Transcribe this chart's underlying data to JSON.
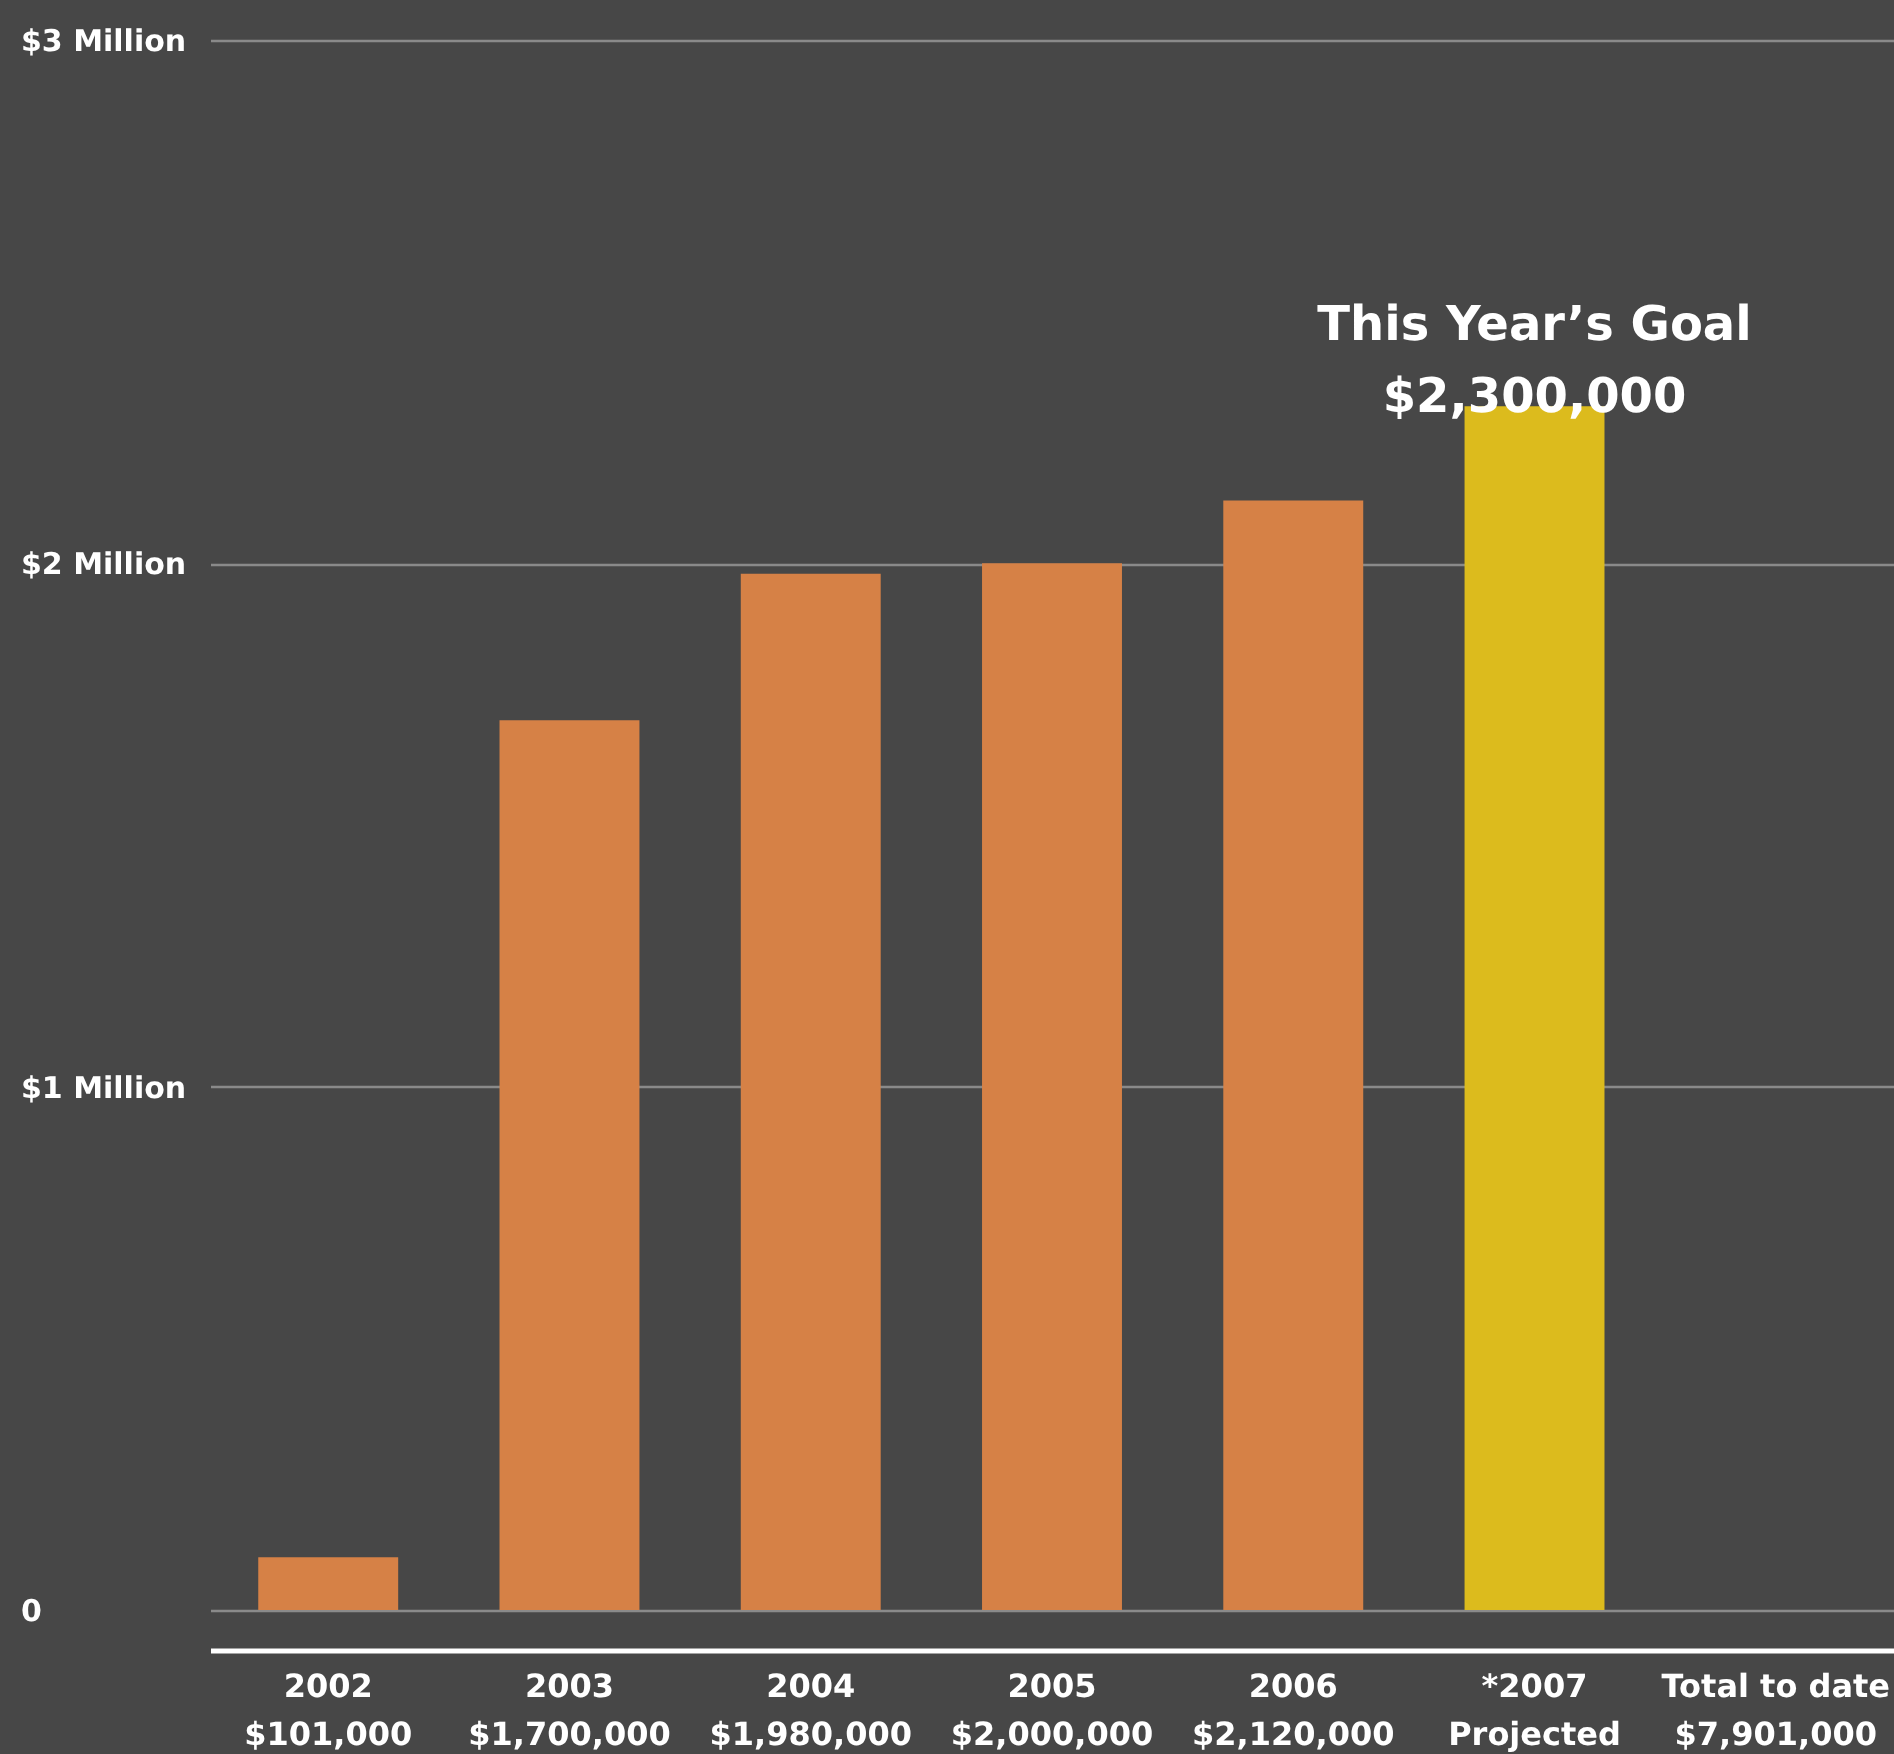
{
  "chart_data": {
    "type": "bar",
    "categories": [
      "2002\n$101,000",
      "2003\n$1,700,000",
      "2004\n$1,980,000",
      "2005\n$2,000,000",
      "2006\n$2,120,000",
      "*2007\nProjected",
      "Total to date\n$7,901,000"
    ],
    "values": [
      0.101,
      1.7,
      1.98,
      2.0,
      2.12,
      2.3,
      null
    ],
    "colors": [
      "#d68146",
      "#d68146",
      "#d68146",
      "#d68146",
      "#d68146",
      "#dcbb1d",
      "#d68146"
    ],
    "ylim": [
      0,
      3
    ],
    "yticks": [
      0,
      {
        "value": 1,
        "label": "$1 Million"
      },
      {
        "value": 2,
        "label": "$2 Million"
      },
      {
        "value": 3,
        "label": "$3 Million"
      }
    ],
    "grid": "y",
    "annotations": [
      {
        "text": "This Year’s Goal\n$2,300,000",
        "x": "*2007\nProjected",
        "y": 2.3
      }
    ]
  }
}
